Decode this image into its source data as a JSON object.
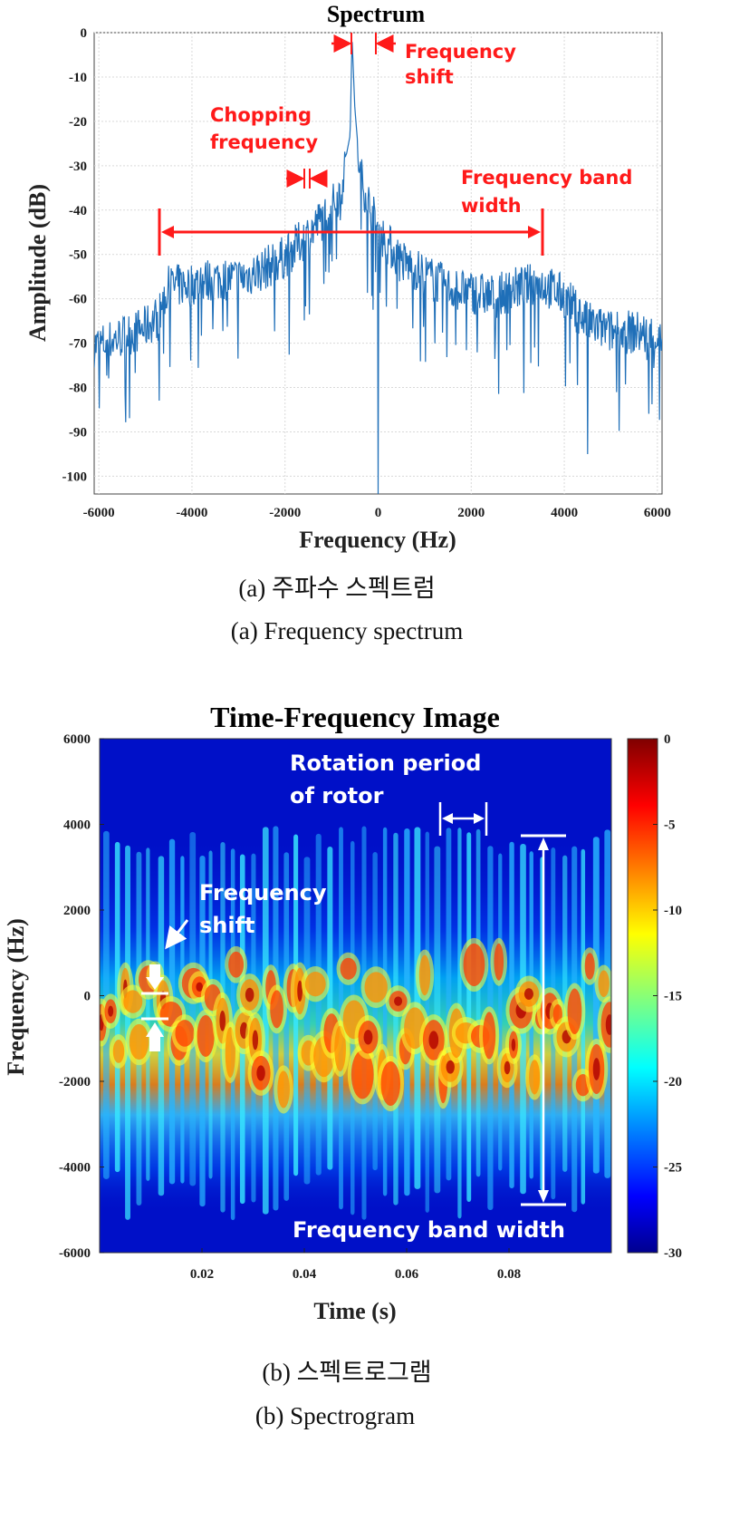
{
  "chart_data": [
    {
      "type": "line",
      "title": "Spectrum",
      "xlabel": "Frequency (Hz)",
      "ylabel": "Amplitude (dB)",
      "xlim": [
        -6100,
        6100
      ],
      "ylim": [
        -104,
        0
      ],
      "xticks": [
        -6000,
        -4000,
        -2000,
        0,
        2000,
        4000,
        6000
      ],
      "yticks": [
        0,
        -10,
        -20,
        -30,
        -40,
        -50,
        -60,
        -70,
        -80,
        -90,
        -100
      ],
      "grid": true,
      "line_color": "#1f6fb8",
      "series": [
        {
          "x": [
            -6000,
            -5500,
            -5000,
            -4700,
            -4500,
            -4000,
            -3500,
            -3000,
            -2500,
            -2000,
            -1500,
            -1000,
            -800,
            -600,
            -560,
            -500,
            -400,
            -200,
            0,
            200,
            500,
            1000,
            1500,
            2000,
            2500,
            3000,
            3500,
            4000,
            4500,
            5000,
            5500,
            6000
          ],
          "values": [
            -69,
            -67,
            -65,
            -62,
            -56,
            -55,
            -54,
            -54,
            -52,
            -49,
            -44,
            -38,
            -34,
            -23,
            -1,
            -17,
            -30,
            -37,
            -43,
            -46,
            -50,
            -53,
            -56,
            -57,
            -58,
            -56,
            -55,
            -58,
            -64,
            -66,
            -66,
            -67
          ]
        }
      ],
      "notable_dips": [
        {
          "x": 0,
          "y": -104
        },
        {
          "x": 4500,
          "y": -95
        }
      ],
      "annotations": {
        "frequency_shift": "Frequency\nshift",
        "chopping_frequency": "Chopping\nfrequency",
        "band_width": "Frequency band\nwidth"
      },
      "annotation_color": "#ff1a1a"
    },
    {
      "type": "heatmap",
      "title": "Time-Frequency Image",
      "xlabel": "Time (s)",
      "ylabel": "Frequency (Hz)",
      "xlim": [
        0,
        0.1
      ],
      "ylim": [
        -6000,
        6000
      ],
      "xticks": [
        0.02,
        0.04,
        0.06,
        0.08
      ],
      "yticks": [
        6000,
        4000,
        2000,
        0,
        -2000,
        -4000,
        -6000
      ],
      "colorbar": {
        "min": -30,
        "max": 0,
        "ticks": [
          0,
          -5,
          -10,
          -15,
          -20,
          -25,
          -30
        ],
        "colormap": "jet"
      },
      "band_limits_hz": [
        -5100,
        3800
      ],
      "core_band_hz": [
        -2200,
        800
      ],
      "annotations": {
        "rotation_period": "Rotation period\nof rotor",
        "frequency_shift": "Frequency\nshift",
        "band_width": "Frequency band width"
      }
    }
  ],
  "captions": {
    "a_korean": "(a) 주파수 스펙트럼",
    "a_english": "(a)  Frequency  spectrum",
    "b_korean": "(b) 스펙트로그램",
    "b_english": "(b)  Spectrogram"
  }
}
